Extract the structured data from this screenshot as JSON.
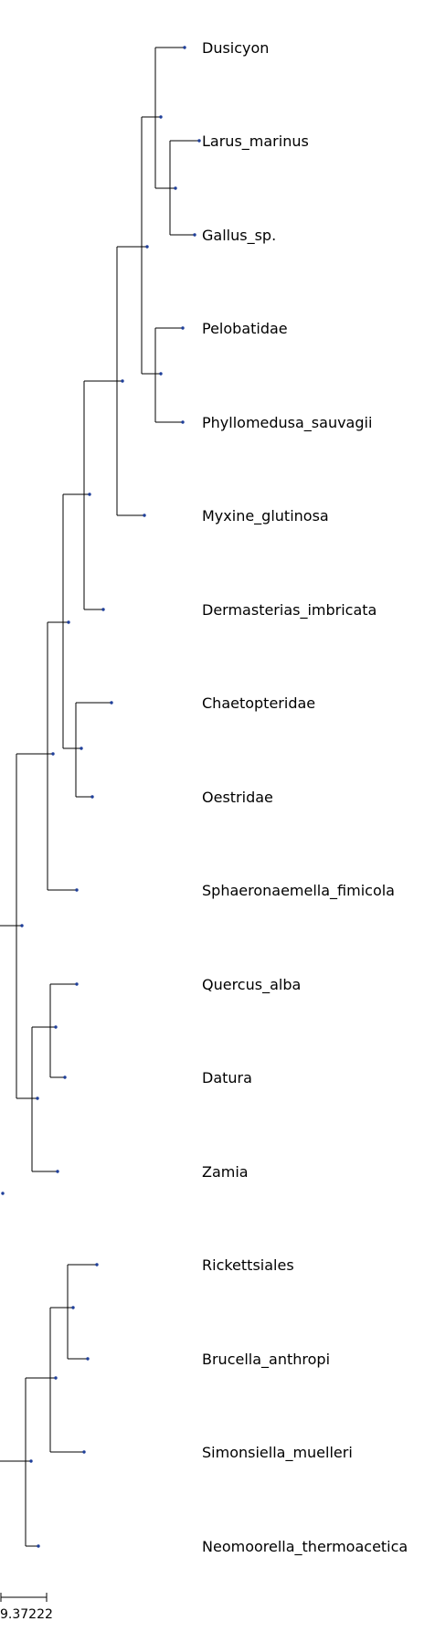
{
  "colors": {
    "branch": "#000000",
    "node": "#1f3f9a"
  },
  "tree": {
    "tips": [
      "Dusicyon",
      "Larus_marinus",
      "Gallus_sp.",
      "Pelobatidae",
      "Phyllomedusa_sauvagii",
      "Myxine_glutinosa",
      "Dermasterias_imbricata",
      "Chaetopteridae",
      "Oestridae",
      "Sphaeronaemella_fimicola",
      "Quercus_alba",
      "Datura",
      "Zamia",
      "Rickettsiales",
      "Brucella_anthropi",
      "Simonsiella_muelleri",
      "Neomoorella_thermoacetica"
    ]
  },
  "scale_bar": {
    "label": "9.37222"
  }
}
